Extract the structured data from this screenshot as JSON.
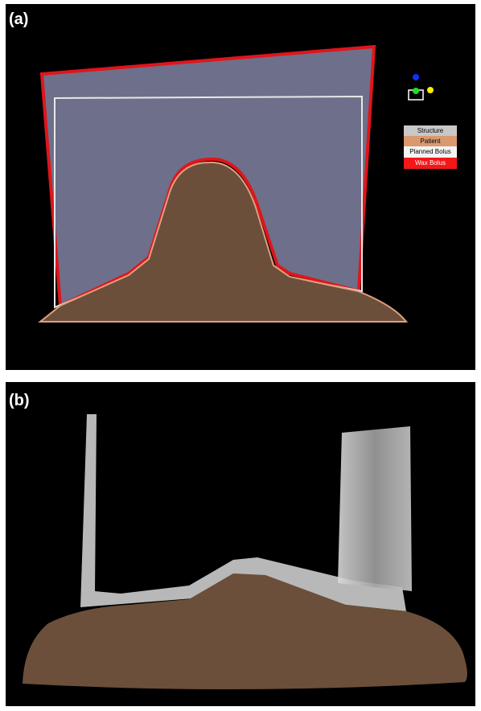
{
  "panels": [
    {
      "label": "(a)",
      "legend": [
        "Structure",
        "Patient",
        "Planned Bolus",
        "Wax Bolus"
      ]
    },
    {
      "label": "(b)"
    }
  ]
}
